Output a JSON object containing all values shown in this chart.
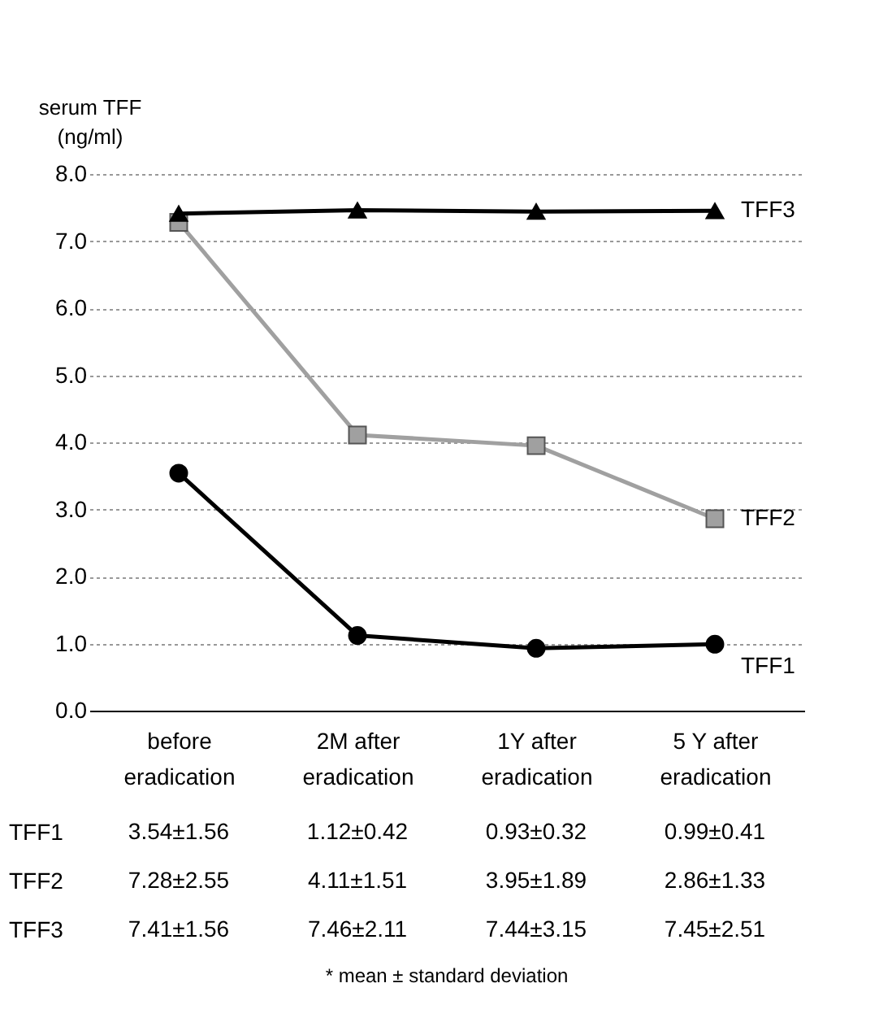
{
  "chart_data": {
    "type": "line",
    "ylabel": "serum TFF (ng/ml)",
    "categories": [
      "before eradication",
      "2M after eradication",
      "1Y after eradication",
      "5 Y after eradication"
    ],
    "ylim": [
      0,
      8
    ],
    "yticks": [
      {
        "value": 0,
        "label": "0.0"
      },
      {
        "value": 1,
        "label": "1.0"
      },
      {
        "value": 2,
        "label": "2.0"
      },
      {
        "value": 3,
        "label": "3.0"
      },
      {
        "value": 4,
        "label": "4.0"
      },
      {
        "value": 5,
        "label": "5.0"
      },
      {
        "value": 6,
        "label": "6.0"
      },
      {
        "value": 7,
        "label": "7.0"
      },
      {
        "value": 8,
        "label": "8.0"
      }
    ],
    "grid": "y",
    "legend": false,
    "line_style": "solid",
    "series": [
      {
        "name": "TFF1",
        "color": "#000000",
        "marker": "circle",
        "values": [
          3.54,
          1.12,
          0.93,
          0.99
        ],
        "value_labels": [
          "3.54±1.56",
          "1.12±0.42",
          "0.93±0.32",
          "0.99±0.41"
        ]
      },
      {
        "name": "TFF2",
        "color": "#a0a0a0",
        "marker": "square",
        "values": [
          7.28,
          4.11,
          3.95,
          2.86
        ],
        "value_labels": [
          "7.28±2.55",
          "4.11±1.51",
          "3.95±1.89",
          "2.86±1.33"
        ]
      },
      {
        "name": "TFF3",
        "color": "#000000",
        "marker": "triangle",
        "values": [
          7.41,
          7.46,
          7.44,
          7.45
        ],
        "value_labels": [
          "7.41±1.56",
          "7.46±2.11",
          "7.44±3.15",
          "7.45±2.51"
        ]
      }
    ],
    "annotations": [
      "* mean ± standard deviation"
    ]
  }
}
